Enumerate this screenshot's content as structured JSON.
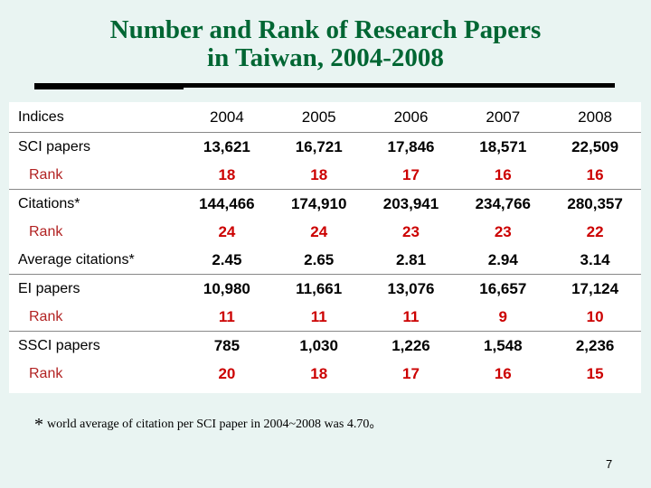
{
  "title_line1": "Number and Rank of Research Papers",
  "title_line2": "in Taiwan, 2004-2008",
  "table": {
    "header_label": "Indices",
    "years": [
      "2004",
      "2005",
      "2006",
      "2007",
      "2008"
    ],
    "rows": [
      {
        "label": "SCI papers",
        "values": [
          "13,621",
          "16,721",
          "17,846",
          "18,571",
          "22,509"
        ],
        "rank": false
      },
      {
        "label": "Rank",
        "values": [
          "18",
          "18",
          "17",
          "16",
          "16"
        ],
        "rank": true
      },
      {
        "label": "Citations*",
        "values": [
          "144,466",
          "174,910",
          "203,941",
          "234,766",
          "280,357"
        ],
        "rank": false
      },
      {
        "label": "Rank",
        "values": [
          "24",
          "24",
          "23",
          "23",
          "22"
        ],
        "rank": true
      },
      {
        "label": "Average citations*",
        "values": [
          "2.45",
          "2.65",
          "2.81",
          "2.94",
          "3.14"
        ],
        "rank": false
      },
      {
        "label": "EI papers",
        "values": [
          "10,980",
          "11,661",
          "13,076",
          "16,657",
          "17,124"
        ],
        "rank": false
      },
      {
        "label": "Rank",
        "values": [
          "11",
          "11",
          "11",
          "9",
          "10"
        ],
        "rank": true
      },
      {
        "label": "SSCI papers",
        "values": [
          "785",
          "1,030",
          "1,226",
          "1,548",
          "2,236"
        ],
        "rank": false
      },
      {
        "label": "Rank",
        "values": [
          "20",
          "18",
          "17",
          "16",
          "15"
        ],
        "rank": true
      }
    ]
  },
  "footnote": {
    "symbol": "*",
    "text": "world average of citation per SCI paper in 2004~2008 was 4.70。"
  },
  "page_number": "7",
  "colors": {
    "background": "#e9f4f2",
    "title": "#006633",
    "rank_value": "#cc0000",
    "rank_label": "#b22222"
  }
}
